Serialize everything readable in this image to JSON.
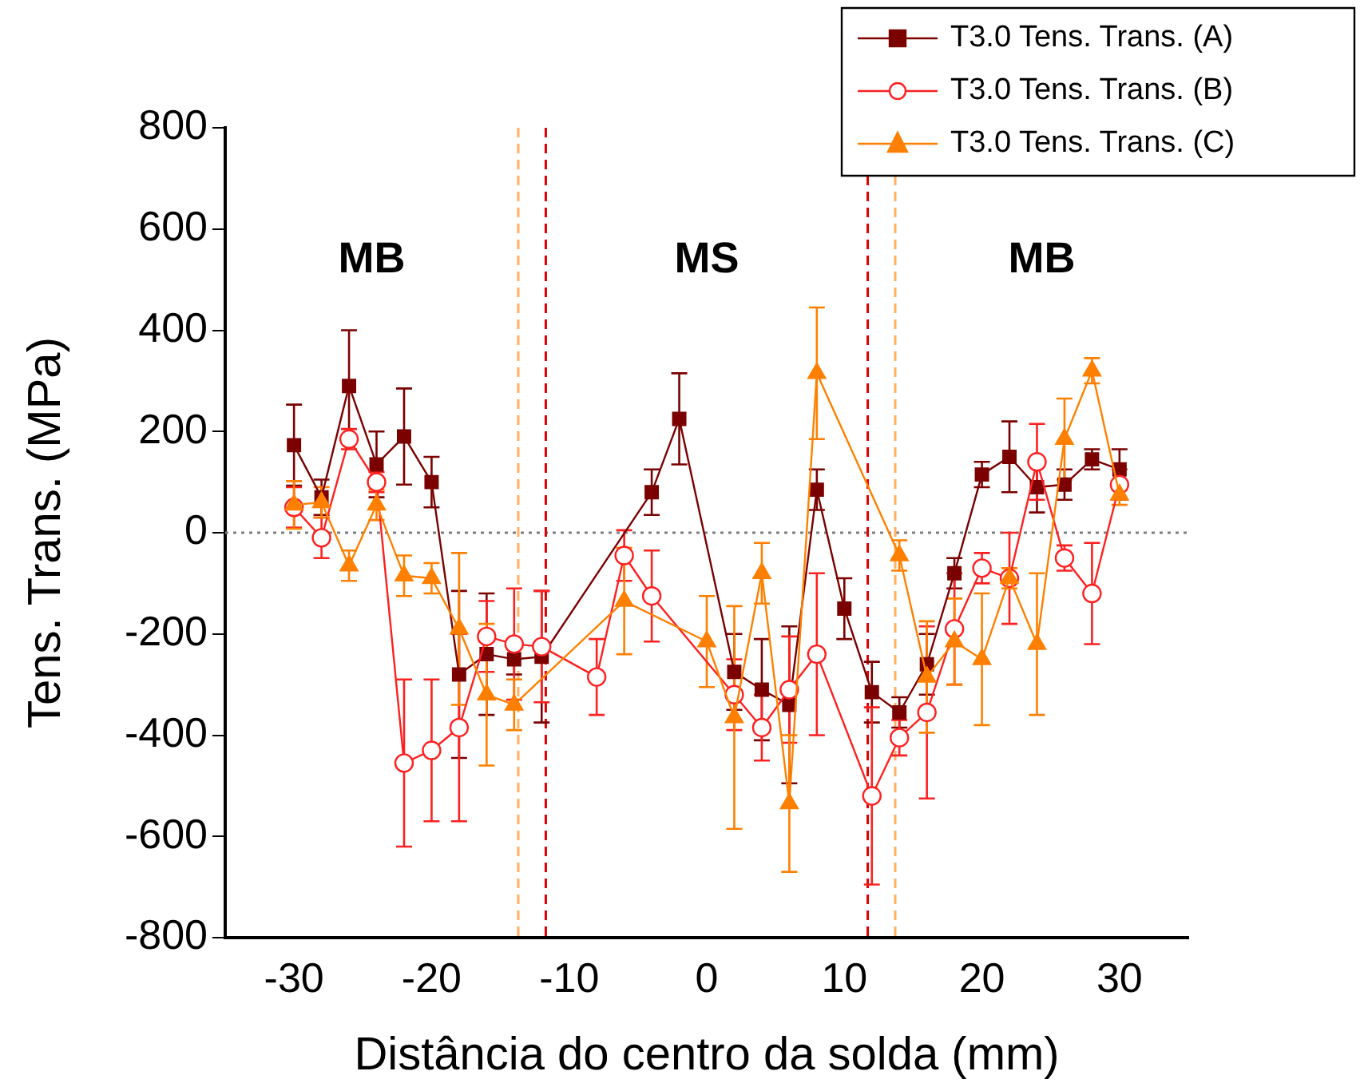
{
  "chart_data": {
    "type": "line",
    "xlabel": "Distância do centro da solda (mm)",
    "ylabel": "Tens. Trans. (MPa)",
    "xlim": [
      -35,
      35
    ],
    "xticks": [
      -30,
      -20,
      -10,
      0,
      10,
      20,
      30
    ],
    "ylim": [
      -800,
      800
    ],
    "yticks": [
      -800,
      -600,
      -400,
      -200,
      0,
      200,
      400,
      600,
      800
    ],
    "grid": false,
    "legend": "top right",
    "series": [
      {
        "name": "T3.0 Tens. Trans. (A)",
        "color": "#7b0000",
        "marker": "square",
        "x": [
          -30,
          -28,
          -26,
          -24,
          -22,
          -20,
          -18,
          -16,
          -14,
          -12,
          -4,
          -2,
          2,
          4,
          6,
          8,
          10,
          12,
          14,
          16,
          18,
          20,
          22,
          24,
          26,
          28,
          30
        ],
        "values": [
          173,
          70,
          290,
          135,
          190,
          100,
          -280,
          -240,
          -250,
          -245,
          80,
          225,
          -275,
          -310,
          -340,
          85,
          -150,
          -315,
          -355,
          -260,
          -80,
          115,
          150,
          90,
          95,
          145,
          125
        ],
        "errors": [
          80,
          35,
          110,
          65,
          95,
          50,
          165,
          120,
          30,
          130,
          45,
          90,
          75,
          100,
          155,
          40,
          60,
          60,
          30,
          60,
          30,
          25,
          70,
          50,
          30,
          20,
          40
        ]
      },
      {
        "name": "T3.0 Tens. Trans. (B)",
        "color": "#ff2020",
        "marker": "circle",
        "x": [
          -30,
          -28,
          -26,
          -24,
          -22,
          -20,
          -18,
          -16,
          -14,
          -12,
          -8,
          -6,
          -4,
          2,
          4,
          6,
          8,
          12,
          14,
          16,
          18,
          20,
          22,
          24,
          26,
          28,
          30
        ],
        "values": [
          50,
          -10,
          185,
          100,
          -455,
          -430,
          -385,
          -205,
          -220,
          -225,
          -285,
          -45,
          -125,
          -320,
          -385,
          -310,
          -240,
          -520,
          -405,
          -355,
          -190,
          -70,
          -90,
          140,
          -50,
          -120,
          95
        ],
        "errors": [
          40,
          40,
          20,
          20,
          165,
          140,
          185,
          70,
          110,
          110,
          75,
          50,
          90,
          70,
          65,
          105,
          160,
          175,
          35,
          170,
          110,
          30,
          90,
          75,
          25,
          100,
          30
        ]
      },
      {
        "name": "T3.0 Tens. Trans. (C)",
        "color": "#ff8000",
        "marker": "triangle",
        "x": [
          -30,
          -28,
          -26,
          -24,
          -22,
          -20,
          -18,
          -16,
          -14,
          -6,
          0,
          2,
          4,
          6,
          8,
          14,
          16,
          18,
          20,
          22,
          24,
          26,
          28,
          30
        ],
        "values": [
          55,
          60,
          -65,
          55,
          -85,
          -90,
          -190,
          -320,
          -340,
          -135,
          -215,
          -365,
          -80,
          -535,
          315,
          -45,
          -285,
          -215,
          -250,
          -90,
          -220,
          185,
          320,
          75
        ],
        "errors": [
          47,
          30,
          30,
          30,
          40,
          30,
          150,
          140,
          50,
          105,
          90,
          220,
          60,
          135,
          130,
          30,
          110,
          85,
          130,
          20,
          140,
          80,
          25,
          20
        ]
      }
    ],
    "ref_lines": [
      {
        "axis": "y",
        "value": 0,
        "color": "#808080",
        "line_style": "dotted"
      },
      {
        "axis": "x",
        "value": -13.7,
        "color": "#ffb060",
        "line_style": "dashed"
      },
      {
        "axis": "x",
        "value": -11.7,
        "color": "#e00000",
        "line_style": "dashed"
      },
      {
        "axis": "x",
        "value": 11.7,
        "color": "#e00000",
        "line_style": "dashed"
      },
      {
        "axis": "x",
        "value": 13.7,
        "color": "#ffb060",
        "line_style": "dashed"
      }
    ],
    "annotations": [
      "MB",
      "MS",
      "MB"
    ]
  }
}
